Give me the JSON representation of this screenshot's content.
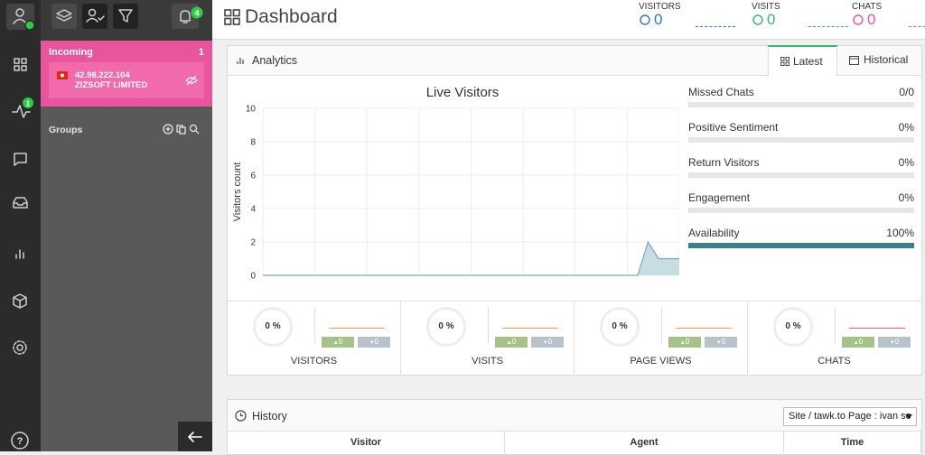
{
  "sidebar": {
    "activity_badge": "1",
    "notification_badge": "4"
  },
  "incoming": {
    "title": "Incoming",
    "count": "1",
    "visitor": {
      "ip": "42.98.222.104",
      "company": "ZIZSOFT LIMITED"
    }
  },
  "groups": {
    "title": "Groups"
  },
  "header": {
    "title": "Dashboard",
    "stats": [
      {
        "label": "VISITORS",
        "value": "0",
        "color": "#2a7ab8"
      },
      {
        "label": "VISITS",
        "value": "0",
        "color": "#3cb371"
      },
      {
        "label": "CHATS",
        "value": "0",
        "color": "#e8559c"
      }
    ]
  },
  "analytics": {
    "title": "Analytics",
    "tabs": [
      "Latest",
      "Historical"
    ],
    "chart": {
      "type": "area",
      "title": "Live Visitors",
      "y_label": "Visitors count",
      "values": [
        0,
        0,
        0,
        0,
        0,
        0,
        0,
        0,
        0,
        0,
        0,
        0,
        0,
        0,
        0,
        0,
        0,
        0,
        0,
        0,
        0,
        0,
        0,
        0,
        0,
        0,
        0,
        0,
        0,
        0,
        0,
        0,
        0,
        0,
        0,
        0,
        0,
        2,
        1,
        1,
        1
      ],
      "ylim": [
        0,
        10
      ],
      "yticks": [
        0,
        2,
        4,
        6,
        8,
        10
      ],
      "grid": true,
      "color": "#c6dde4",
      "line_color": "#7aa7b4"
    },
    "metrics": [
      {
        "name": "Missed Chats",
        "value": 0,
        "label": "0/0"
      },
      {
        "name": "Positive Sentiment",
        "value": 0,
        "label": "0%"
      },
      {
        "name": "Return Visitors",
        "value": 0,
        "label": "0%"
      },
      {
        "name": "Engagement",
        "value": 0,
        "label": "0%"
      },
      {
        "name": "Availability",
        "value": 100,
        "label": "100%"
      }
    ],
    "summary": [
      {
        "percent": "0 %",
        "up": "0",
        "down": "0",
        "label": "VISITORS"
      },
      {
        "percent": "0 %",
        "up": "0",
        "down": "0",
        "label": "VISITS"
      },
      {
        "percent": "0 %",
        "up": "0",
        "down": "0",
        "label": "PAGE VIEWS"
      },
      {
        "percent": "0 %",
        "up": "0",
        "down": "0",
        "label": "CHATS"
      }
    ]
  },
  "history": {
    "title": "History",
    "filter": "Site / tawk.to Page : ivan so",
    "columns": [
      "Visitor",
      "Agent",
      "Time"
    ]
  }
}
